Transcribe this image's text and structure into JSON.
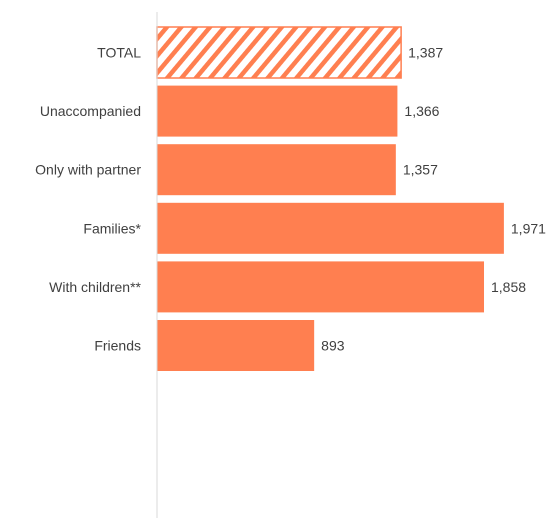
{
  "colors": {
    "bar": "#ff7f50",
    "axis": "#d9d9d9",
    "text": "#404040",
    "page": "#ffffff"
  },
  "chart_data": {
    "type": "bar",
    "orientation": "horizontal",
    "categories": [
      "TOTAL",
      "Unaccompanied",
      "Only with partner",
      "Families*",
      "With children**",
      "Friends"
    ],
    "values": [
      1387,
      1366,
      1357,
      1971,
      1858,
      893
    ],
    "value_labels": [
      "1,387",
      "1,366",
      "1,357",
      "1,971",
      "1,858",
      "893"
    ],
    "patterned": [
      true,
      false,
      false,
      false,
      false,
      false
    ],
    "title": "",
    "xlabel": "",
    "ylabel": "",
    "xlim": [
      0,
      2000
    ],
    "grid": false,
    "legend": "none"
  }
}
